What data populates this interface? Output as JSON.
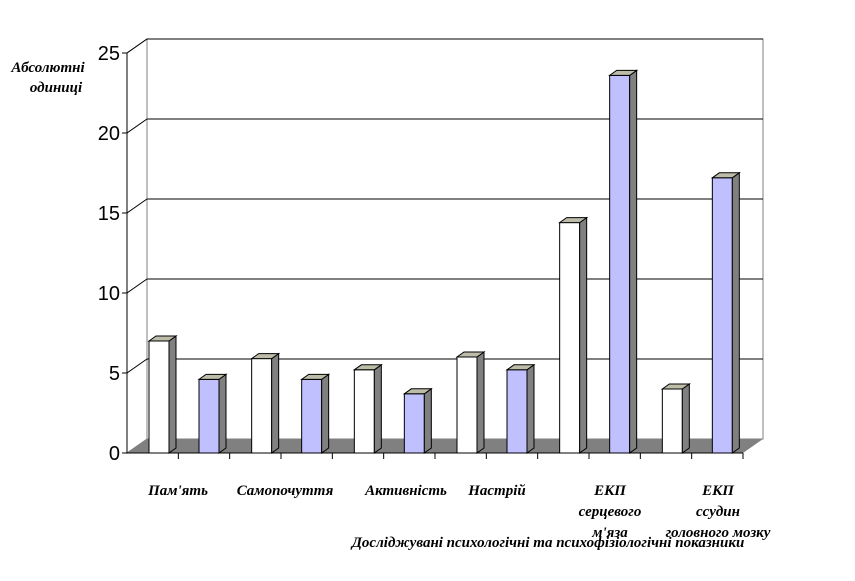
{
  "chart_data": {
    "type": "bar",
    "three_d": true,
    "ylabel": [
      "Абсолютні",
      "одиниці"
    ],
    "xlabel": "Досліджувані психологічні та  психофізіологічні показники",
    "ylim": [
      0,
      25
    ],
    "yticks": [
      0,
      5,
      10,
      15,
      20,
      25
    ],
    "grid": true,
    "categories": [
      [
        "Пам'ять"
      ],
      [
        "Самопочуття"
      ],
      [
        "Активність"
      ],
      [
        "Настрій"
      ],
      [
        "ЕКП",
        "серцевого",
        "м'яза"
      ],
      [
        "ЕКП",
        "ссудин",
        "головного мозку"
      ]
    ],
    "series": [
      {
        "color": "#ffffff",
        "values": [
          7.0,
          5.9,
          5.2,
          6.0,
          14.4,
          4.0
        ]
      },
      {
        "color": "#c0c0ff",
        "values": [
          4.6,
          4.6,
          3.7,
          5.2,
          23.6,
          17.2
        ]
      }
    ],
    "colors": {
      "wall": "#ffffff",
      "floor": "#808080",
      "grid": "#000000",
      "bar_side": "#808080"
    }
  }
}
